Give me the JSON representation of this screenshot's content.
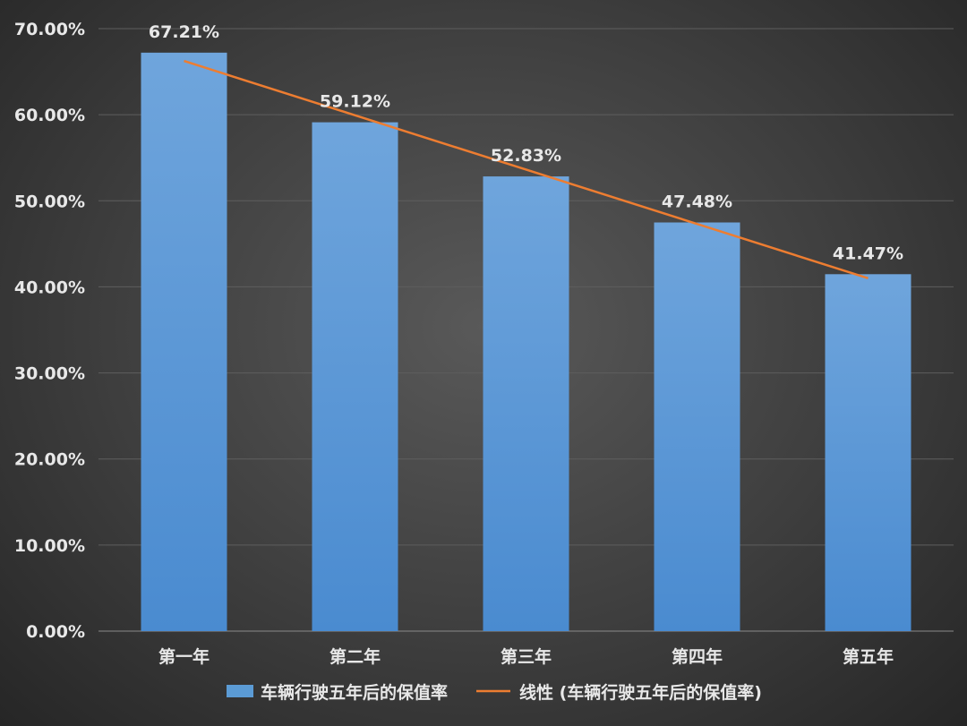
{
  "chart_data": {
    "type": "bar",
    "title": "",
    "xlabel": "",
    "ylabel": "",
    "categories": [
      "第一年",
      "第二年",
      "第三年",
      "第四年",
      "第五年"
    ],
    "series": [
      {
        "name": "车辆行驶五年后的保值率",
        "values": [
          67.21,
          59.12,
          52.83,
          47.48,
          41.47
        ],
        "color": "#5b9bd5"
      }
    ],
    "data_labels": [
      "67.21%",
      "59.12%",
      "52.83%",
      "47.48%",
      "41.47%"
    ],
    "trendline": {
      "name": "线性 (车辆行驶五年后的保值率)",
      "type": "linear",
      "color": "#ed7d31"
    },
    "ylim": [
      0,
      70
    ],
    "yticks": [
      "0.00%",
      "10.00%",
      "20.00%",
      "30.00%",
      "40.00%",
      "50.00%",
      "60.00%",
      "70.00%"
    ],
    "grid": true,
    "legend": "bottom"
  }
}
